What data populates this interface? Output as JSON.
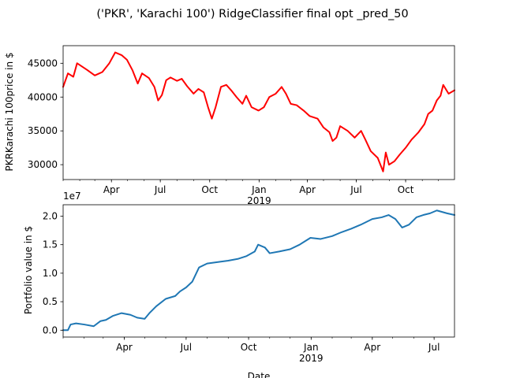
{
  "figure": {
    "title": "('PKR', 'Karachi 100') RidgeClassifier final opt _pred_50"
  },
  "chart_data": [
    {
      "type": "line",
      "ylabel": "PKRKarachi 100price in $",
      "xlabel": "",
      "year_label": "2019",
      "ylim": [
        27800,
        47600
      ],
      "xlim": [
        "2018-01-01",
        "2019-12-31"
      ],
      "yticks": [
        {
          "value": 30000,
          "label": "30000"
        },
        {
          "value": 35000,
          "label": "35000"
        },
        {
          "value": 40000,
          "label": "40000"
        },
        {
          "value": 45000,
          "label": "45000"
        }
      ],
      "xticks": [
        {
          "date": "2018-04-01",
          "label": "Apr"
        },
        {
          "date": "2018-07-01",
          "label": "Jul"
        },
        {
          "date": "2018-10-01",
          "label": "Oct"
        },
        {
          "date": "2019-01-01",
          "label": "Jan"
        },
        {
          "date": "2019-04-01",
          "label": "Apr"
        },
        {
          "date": "2019-07-01",
          "label": "Jul"
        },
        {
          "date": "2019-10-01",
          "label": "Oct"
        }
      ],
      "series": [
        {
          "color": "#ff0000",
          "points": [
            [
              "2018-01-01",
              41500
            ],
            [
              "2018-01-10",
              43500
            ],
            [
              "2018-01-20",
              43000
            ],
            [
              "2018-01-27",
              45000
            ],
            [
              "2018-02-15",
              44000
            ],
            [
              "2018-03-01",
              43200
            ],
            [
              "2018-03-15",
              43700
            ],
            [
              "2018-03-28",
              45000
            ],
            [
              "2018-04-08",
              46600
            ],
            [
              "2018-04-20",
              46200
            ],
            [
              "2018-04-30",
              45500
            ],
            [
              "2018-05-10",
              44000
            ],
            [
              "2018-05-20",
              42000
            ],
            [
              "2018-05-28",
              43500
            ],
            [
              "2018-06-10",
              42800
            ],
            [
              "2018-06-20",
              41500
            ],
            [
              "2018-06-27",
              39500
            ],
            [
              "2018-07-04",
              40300
            ],
            [
              "2018-07-12",
              42500
            ],
            [
              "2018-07-20",
              42900
            ],
            [
              "2018-08-01",
              42400
            ],
            [
              "2018-08-10",
              42700
            ],
            [
              "2018-08-20",
              41600
            ],
            [
              "2018-09-01",
              40500
            ],
            [
              "2018-09-10",
              41200
            ],
            [
              "2018-09-20",
              40700
            ],
            [
              "2018-09-28",
              38500
            ],
            [
              "2018-10-05",
              36800
            ],
            [
              "2018-10-12",
              38500
            ],
            [
              "2018-10-22",
              41500
            ],
            [
              "2018-11-01",
              41800
            ],
            [
              "2018-11-10",
              41000
            ],
            [
              "2018-11-20",
              40000
            ],
            [
              "2018-12-01",
              39000
            ],
            [
              "2018-12-08",
              40200
            ],
            [
              "2018-12-18",
              38500
            ],
            [
              "2018-12-31",
              38000
            ],
            [
              "2019-01-10",
              38500
            ],
            [
              "2019-01-20",
              40000
            ],
            [
              "2019-02-01",
              40500
            ],
            [
              "2019-02-12",
              41500
            ],
            [
              "2019-02-20",
              40500
            ],
            [
              "2019-03-01",
              39000
            ],
            [
              "2019-03-12",
              38800
            ],
            [
              "2019-03-25",
              38000
            ],
            [
              "2019-04-05",
              37200
            ],
            [
              "2019-04-20",
              36800
            ],
            [
              "2019-05-01",
              35500
            ],
            [
              "2019-05-12",
              34800
            ],
            [
              "2019-05-18",
              33500
            ],
            [
              "2019-05-25",
              34000
            ],
            [
              "2019-06-01",
              35700
            ],
            [
              "2019-06-15",
              35000
            ],
            [
              "2019-06-28",
              34000
            ],
            [
              "2019-07-10",
              35000
            ],
            [
              "2019-07-18",
              33700
            ],
            [
              "2019-07-28",
              32000
            ],
            [
              "2019-08-10",
              31000
            ],
            [
              "2019-08-20",
              29000
            ],
            [
              "2019-08-25",
              31800
            ],
            [
              "2019-08-31",
              30000
            ],
            [
              "2019-09-10",
              30500
            ],
            [
              "2019-09-20",
              31500
            ],
            [
              "2019-10-01",
              32500
            ],
            [
              "2019-10-12",
              33700
            ],
            [
              "2019-10-25",
              34800
            ],
            [
              "2019-11-05",
              36000
            ],
            [
              "2019-11-12",
              37500
            ],
            [
              "2019-11-20",
              38000
            ],
            [
              "2019-11-28",
              39500
            ],
            [
              "2019-12-05",
              40200
            ],
            [
              "2019-12-10",
              41800
            ],
            [
              "2019-12-20",
              40500
            ],
            [
              "2019-12-31",
              41000
            ]
          ]
        }
      ]
    },
    {
      "type": "line",
      "ylabel": "Portfolio value in $",
      "xlabel": "Date",
      "year_label": "2019",
      "scale_label": "1e7",
      "ylim": [
        -0.12,
        2.2
      ],
      "xlim": [
        "2018-01-01",
        "2019-07-31"
      ],
      "yticks": [
        {
          "value": 0.0,
          "label": "0.0"
        },
        {
          "value": 0.5,
          "label": "0.5"
        },
        {
          "value": 1.0,
          "label": "1.0"
        },
        {
          "value": 1.5,
          "label": "1.5"
        },
        {
          "value": 2.0,
          "label": "2.0"
        }
      ],
      "xticks": [
        {
          "date": "2018-04-01",
          "label": "Apr"
        },
        {
          "date": "2018-07-01",
          "label": "Jul"
        },
        {
          "date": "2018-10-01",
          "label": "Oct"
        },
        {
          "date": "2019-01-01",
          "label": "Jan"
        },
        {
          "date": "2019-04-01",
          "label": "Apr"
        },
        {
          "date": "2019-07-01",
          "label": "Jul"
        }
      ],
      "series": [
        {
          "color": "#1f77b4",
          "points": [
            [
              "2018-01-01",
              0.0
            ],
            [
              "2018-01-08",
              0.0
            ],
            [
              "2018-01-12",
              0.1
            ],
            [
              "2018-01-20",
              0.12
            ],
            [
              "2018-02-01",
              0.1
            ],
            [
              "2018-02-15",
              0.07
            ],
            [
              "2018-02-25",
              0.16
            ],
            [
              "2018-03-05",
              0.18
            ],
            [
              "2018-03-15",
              0.25
            ],
            [
              "2018-03-28",
              0.3
            ],
            [
              "2018-04-10",
              0.27
            ],
            [
              "2018-04-20",
              0.22
            ],
            [
              "2018-05-01",
              0.2
            ],
            [
              "2018-05-08",
              0.3
            ],
            [
              "2018-05-18",
              0.42
            ],
            [
              "2018-06-01",
              0.55
            ],
            [
              "2018-06-15",
              0.6
            ],
            [
              "2018-06-22",
              0.68
            ],
            [
              "2018-07-01",
              0.75
            ],
            [
              "2018-07-10",
              0.85
            ],
            [
              "2018-07-20",
              1.1
            ],
            [
              "2018-08-01",
              1.17
            ],
            [
              "2018-08-20",
              1.2
            ],
            [
              "2018-09-01",
              1.22
            ],
            [
              "2018-09-15",
              1.25
            ],
            [
              "2018-09-28",
              1.3
            ],
            [
              "2018-10-10",
              1.38
            ],
            [
              "2018-10-15",
              1.5
            ],
            [
              "2018-10-25",
              1.45
            ],
            [
              "2018-11-01",
              1.35
            ],
            [
              "2018-11-15",
              1.38
            ],
            [
              "2018-12-01",
              1.42
            ],
            [
              "2018-12-15",
              1.5
            ],
            [
              "2018-12-31",
              1.62
            ],
            [
              "2019-01-15",
              1.6
            ],
            [
              "2019-02-01",
              1.65
            ],
            [
              "2019-02-15",
              1.72
            ],
            [
              "2019-03-01",
              1.78
            ],
            [
              "2019-03-15",
              1.85
            ],
            [
              "2019-04-01",
              1.95
            ],
            [
              "2019-04-15",
              1.98
            ],
            [
              "2019-04-25",
              2.02
            ],
            [
              "2019-05-05",
              1.95
            ],
            [
              "2019-05-15",
              1.8
            ],
            [
              "2019-05-25",
              1.85
            ],
            [
              "2019-06-05",
              1.98
            ],
            [
              "2019-06-15",
              2.02
            ],
            [
              "2019-06-25",
              2.05
            ],
            [
              "2019-07-05",
              2.1
            ],
            [
              "2019-07-20",
              2.05
            ],
            [
              "2019-07-31",
              2.02
            ]
          ]
        }
      ]
    }
  ]
}
